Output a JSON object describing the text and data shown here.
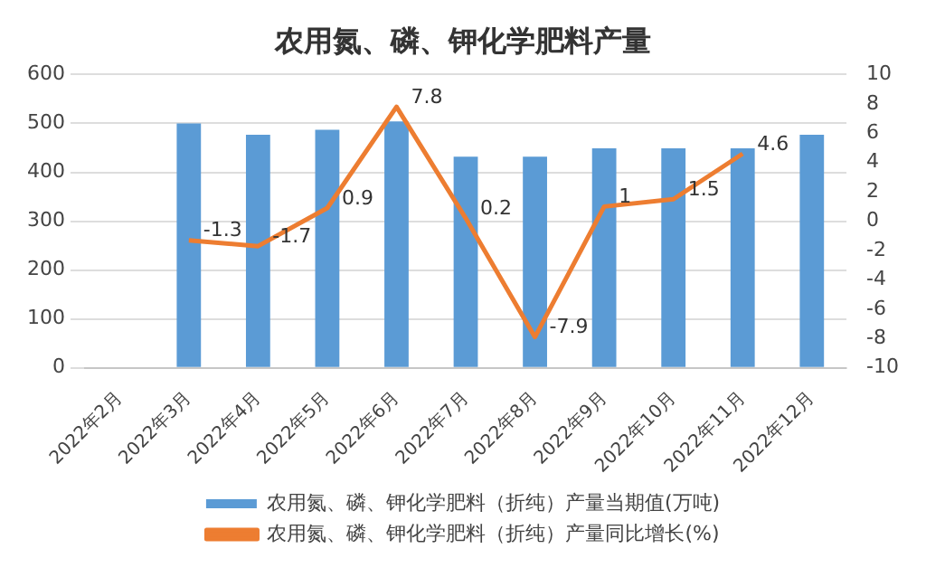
{
  "chart_data": {
    "type": "bar",
    "title": "农用氮、磷、钾化学肥料产量",
    "categories": [
      "2022年2月",
      "2022年3月",
      "2022年4月",
      "2022年5月",
      "2022年6月",
      "2022年7月",
      "2022年8月",
      "2022年9月",
      "2022年10月",
      "2022年11月",
      "2022年12月"
    ],
    "series": [
      {
        "name": "农用氮、磷、钾化学肥料（折纯）产量当期值(万吨)",
        "color": "#5b9bd5",
        "values": [
          null,
          500,
          477,
          487,
          504,
          432,
          432,
          449,
          449,
          449,
          477
        ]
      },
      {
        "name": "农用氮、磷、钾化学肥料（折纯）产量同比增长(%)",
        "type": "line",
        "axis": "y2",
        "color": "#ed7d31",
        "values": [
          null,
          -1.3,
          -1.7,
          0.9,
          7.8,
          0.2,
          -7.9,
          1,
          1.5,
          4.6,
          null
        ],
        "value_labels": [
          null,
          "-1.3",
          "-1.7",
          "0.9",
          "7.8",
          "0.2",
          "-7.9",
          "1",
          "1.5",
          "4.6",
          null
        ]
      }
    ],
    "ylim": [
      0,
      600
    ],
    "yticks": [
      0,
      100,
      200,
      300,
      400,
      500,
      600
    ],
    "y2lim": [
      -10,
      10
    ],
    "y2ticks": [
      -10,
      -8,
      -6,
      -4,
      -2,
      0,
      2,
      4,
      6,
      8,
      10
    ],
    "grid": "y",
    "legend": "bottom",
    "marker": "none"
  }
}
